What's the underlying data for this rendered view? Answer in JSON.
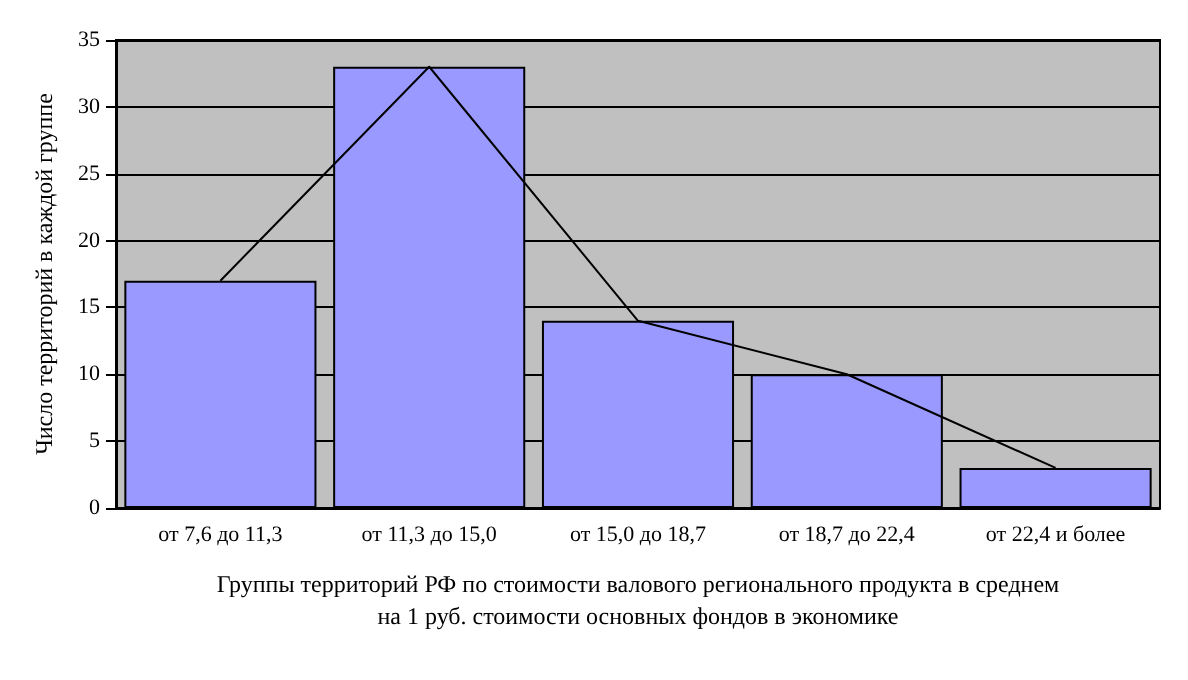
{
  "chart_data": {
    "type": "bar",
    "xlabel": "Группы территорий РФ по стоимости валового регионального продукта в среднем\nна 1 руб. стоимости основных фондов в экономике",
    "ylabel": "Число территорий в каждой группе",
    "categories": [
      "от 7,6 до 11,3",
      "от 11,3 до 15,0",
      "от 15,0 до 18,7",
      "от 18,7 до 22,4",
      "от 22,4 и более"
    ],
    "series": [
      {
        "color": "#9999ff",
        "values": [
          17,
          33,
          14,
          10,
          3
        ]
      },
      {
        "type": "line",
        "color": "#000000",
        "values": [
          17,
          33,
          14,
          10,
          3
        ]
      }
    ],
    "ylim": [
      0,
      35
    ],
    "yticks": [
      0,
      5,
      10,
      15,
      20,
      25,
      30,
      35
    ],
    "grid": "y",
    "marker": "none",
    "line_style": "solid"
  }
}
